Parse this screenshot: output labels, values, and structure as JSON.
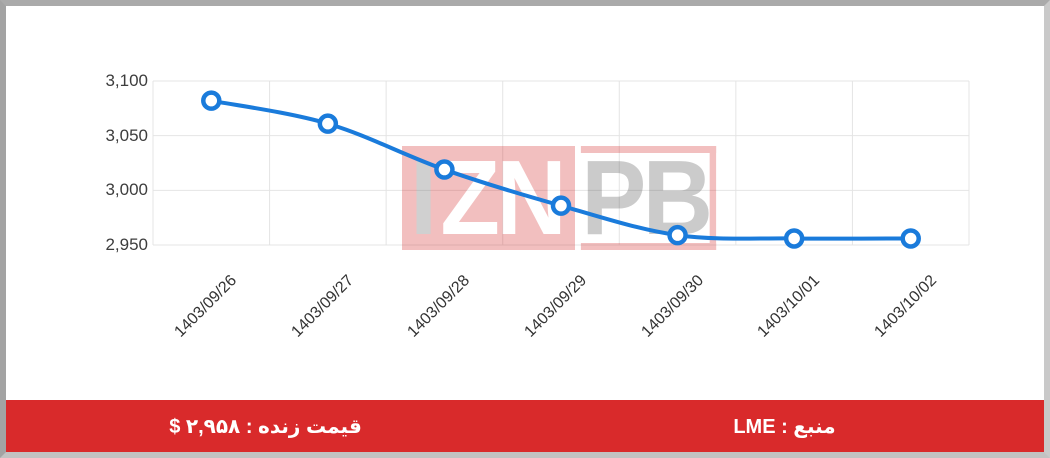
{
  "chart_data": {
    "type": "line",
    "title": "",
    "categories": [
      "1403/09/26",
      "1403/09/27",
      "1403/09/28",
      "1403/09/29",
      "1403/09/30",
      "1403/10/01",
      "1403/10/02"
    ],
    "values": [
      3082,
      3061,
      3019,
      2986,
      2959,
      2956,
      2956
    ],
    "xlabel": "",
    "ylabel": "",
    "ylim": [
      2950,
      3100
    ],
    "yticks": {
      "values": [
        3100,
        3050,
        3000,
        2950
      ],
      "labels": [
        "3,100",
        "3,050",
        "3,000",
        "2,950"
      ]
    },
    "grid": true,
    "legend": "none",
    "line_color": "#1a7bdb",
    "grid_color": "#e4e4e4",
    "marker_style": "open-circle"
  },
  "watermark": {
    "letter_i": "I",
    "letters_zn": "ZN",
    "letters_pb": "PB",
    "color": "#d62d2d"
  },
  "footer": {
    "live_price": "قیمت زنده : ۲,۹۵۸ $",
    "source": "منبع : LME",
    "bar_color": "#d92a2b",
    "text_color": "#ffffff"
  }
}
